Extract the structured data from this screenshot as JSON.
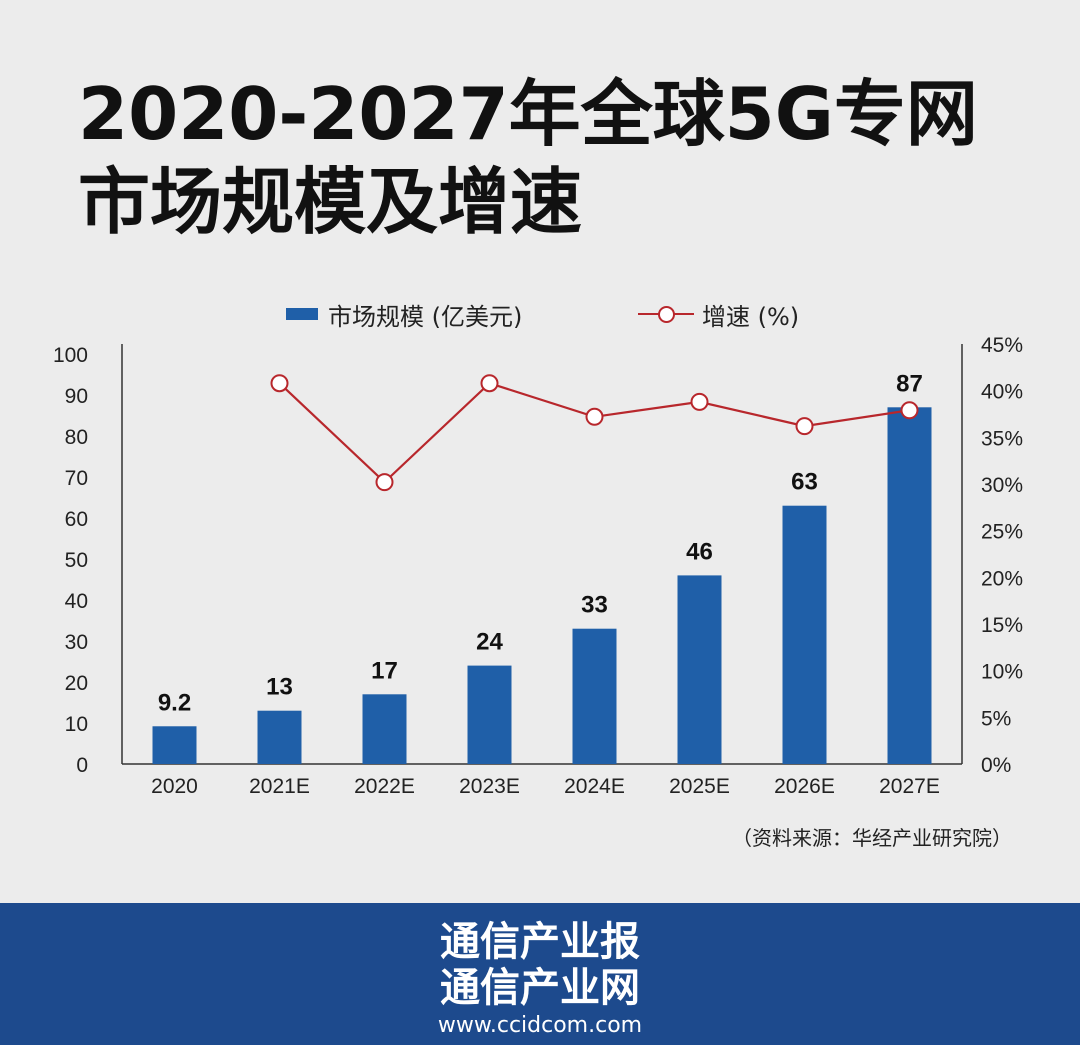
{
  "title": "2020-2027年全球5G专网市场规模及增速",
  "legend": {
    "bar_label": "市场规模 (亿美元)",
    "line_label": "增速 (%)"
  },
  "source": "（资料来源：华经产业研究院）",
  "footer": {
    "brand_line1": "通信产业报",
    "brand_line2": "通信产业网",
    "url": "www.ccidcom.com"
  },
  "colors": {
    "bar": "#1f5fa8",
    "line": "#b8272c",
    "footer_bg": "#1d4a8d",
    "background": "#ececec"
  },
  "chart_data": {
    "type": "bar",
    "title": "2020-2027年全球5G专网市场规模及增速",
    "categories": [
      "2020",
      "2021E",
      "2022E",
      "2023E",
      "2024E",
      "2025E",
      "2026E",
      "2027E"
    ],
    "series": [
      {
        "name": "市场规模 (亿美元)",
        "type": "bar",
        "axis": "left",
        "values": [
          9.2,
          13,
          17,
          24,
          33,
          46,
          63,
          87
        ],
        "labels": [
          "9.2",
          "13",
          "17",
          "24",
          "33",
          "46",
          "63",
          "87"
        ]
      },
      {
        "name": "增速 (%)",
        "type": "line",
        "axis": "right",
        "values": [
          null,
          40.8,
          30.2,
          40.8,
          37.2,
          38.8,
          36.2,
          37.9
        ]
      }
    ],
    "y_left": {
      "min": 0,
      "max": 100,
      "ticks": [
        "0",
        "10",
        "20",
        "30",
        "40",
        "50",
        "60",
        "70",
        "80",
        "90",
        "100"
      ]
    },
    "y_right": {
      "min": 0,
      "max": 45,
      "ticks": [
        "0%",
        "5%",
        "10%",
        "15%",
        "20%",
        "25%",
        "30%",
        "35%",
        "40%",
        "45%"
      ]
    },
    "grid": false,
    "legend_position": "top"
  }
}
